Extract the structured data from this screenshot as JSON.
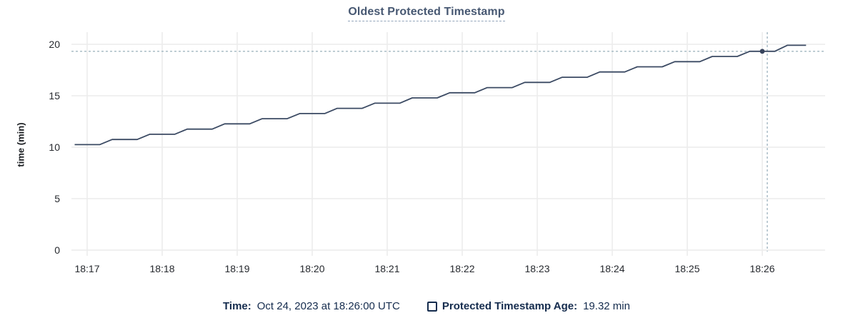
{
  "title": "Oldest Protected Timestamp",
  "y_axis": {
    "label": "time (min)",
    "ticks": [
      0,
      5,
      10,
      15,
      20
    ],
    "min": 0,
    "max": 20
  },
  "x_axis": {
    "ticks": [
      "18:17",
      "18:18",
      "18:19",
      "18:20",
      "18:21",
      "18:22",
      "18:23",
      "18:24",
      "18:25",
      "18:26"
    ]
  },
  "tooltip": {
    "time_label": "Time:",
    "time_value": "Oct 24, 2023 at 18:26:00 UTC",
    "series_label": "Protected Timestamp Age:",
    "series_value": "19.32 min"
  },
  "colors": {
    "line": "#3b4a63",
    "dot": "#36435c",
    "grid": "#ececec",
    "crosshair": "#a2b7c1",
    "title": "#475872",
    "tick_text": "#26292e",
    "legend_text": "#152c4e"
  },
  "chart_data": {
    "type": "line",
    "title": "Oldest Protected Timestamp",
    "xlabel": "",
    "ylabel": "time (min)",
    "ylim": [
      0,
      20
    ],
    "grid": "on",
    "legend_position": "bottom",
    "x_tick_labels": [
      "18:17",
      "18:18",
      "18:19",
      "18:20",
      "18:21",
      "18:22",
      "18:23",
      "18:24",
      "18:25",
      "18:26"
    ],
    "x_unit": "seconds relative to 18:17:00",
    "series": [
      {
        "name": "Protected Timestamp Age",
        "unit": "min",
        "points": [
          [
            -10,
            10.25
          ],
          [
            10,
            10.25
          ],
          [
            20,
            10.75
          ],
          [
            40,
            10.75
          ],
          [
            50,
            11.26
          ],
          [
            70,
            11.26
          ],
          [
            80,
            11.76
          ],
          [
            100,
            11.76
          ],
          [
            110,
            12.27
          ],
          [
            130,
            12.27
          ],
          [
            140,
            12.77
          ],
          [
            160,
            12.77
          ],
          [
            170,
            13.27
          ],
          [
            190,
            13.27
          ],
          [
            200,
            13.78
          ],
          [
            220,
            13.78
          ],
          [
            230,
            14.28
          ],
          [
            250,
            14.28
          ],
          [
            260,
            14.79
          ],
          [
            280,
            14.79
          ],
          [
            290,
            15.29
          ],
          [
            310,
            15.29
          ],
          [
            320,
            15.79
          ],
          [
            340,
            15.79
          ],
          [
            350,
            16.3
          ],
          [
            370,
            16.3
          ],
          [
            380,
            16.8
          ],
          [
            400,
            16.8
          ],
          [
            410,
            17.31
          ],
          [
            430,
            17.31
          ],
          [
            440,
            17.81
          ],
          [
            460,
            17.81
          ],
          [
            470,
            18.31
          ],
          [
            490,
            18.31
          ],
          [
            500,
            18.82
          ],
          [
            520,
            18.82
          ],
          [
            530,
            19.32
          ],
          [
            550,
            19.32
          ],
          [
            560,
            19.9
          ],
          [
            575,
            19.9
          ]
        ]
      }
    ],
    "hover_point": {
      "time": "18:26:00",
      "t_sec": 540,
      "value_min": 19.32
    },
    "crosshair": {
      "time": "18:26:00",
      "t_sec": 544,
      "value_min": 19.32
    }
  }
}
